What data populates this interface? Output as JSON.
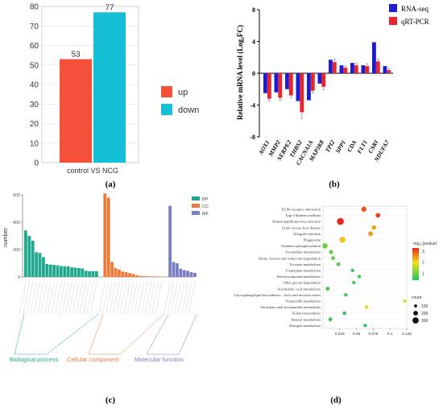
{
  "chart_data": [
    {
      "panel": "(a)",
      "type": "bar",
      "categories": [
        "control VS NCG"
      ],
      "series": [
        {
          "name": "up",
          "values": [
            53
          ],
          "color": "#f4503a"
        },
        {
          "name": "down",
          "values": [
            77
          ],
          "color": "#15bfd6"
        }
      ],
      "ylim": [
        0,
        80
      ],
      "yticks": [
        0,
        10,
        20,
        30,
        40,
        50,
        60,
        70,
        80
      ],
      "legend": "right"
    },
    {
      "panel": "(b)",
      "type": "bar",
      "ylabel": "Relative mRNA level (Log₂FC)",
      "ylim": [
        -8,
        8
      ],
      "yticks": [
        -8,
        -4,
        0,
        4,
        8
      ],
      "categories": [
        "AOX1",
        "MMP2",
        "SERPE2",
        "THBS2",
        "CACNA1A",
        "MAP3K8",
        "TPI2",
        "SPP1",
        "CDA",
        "FLT1",
        "CSRI",
        "NDUFA7"
      ],
      "series": [
        {
          "name": "RNA-seq",
          "color": "#1c1cd8",
          "values": [
            -2.5,
            -2.4,
            -2.0,
            -3.5,
            -3.4,
            -1.3,
            1.7,
            1.0,
            1.3,
            1.0,
            3.9,
            0.9
          ]
        },
        {
          "name": "qRT-PCR",
          "color": "#e8262b",
          "values": [
            -3.2,
            -3.1,
            -2.8,
            -4.9,
            -2.2,
            -1.7,
            1.4,
            0.7,
            1.0,
            0.9,
            1.5,
            0.4
          ]
        }
      ],
      "errors": [
        0.3,
        0.3,
        0.3,
        0.8,
        0.3,
        0.4,
        0.4,
        0.2,
        0.3,
        0.3,
        0.3,
        0.2
      ],
      "legend": "top-right"
    },
    {
      "panel": "(c)",
      "type": "bar",
      "ylabel": "number",
      "ylim": [
        0,
        600
      ],
      "yticks": [
        0,
        200,
        400,
        600
      ],
      "groups": [
        {
          "name": "Biological process",
          "legend": "BP",
          "color": "#20a98e",
          "values": [
            340,
            300,
            265,
            180,
            175,
            145,
            95,
            90,
            88,
            85,
            80,
            78,
            78,
            70,
            68,
            65,
            62,
            45,
            43,
            42,
            42
          ]
        },
        {
          "name": "Cellular component",
          "legend": "CC",
          "color": "#ee7a3a",
          "values": [
            610,
            580,
            110,
            65,
            55,
            40,
            35,
            28,
            22,
            12,
            8,
            6,
            5,
            4,
            4,
            3,
            2
          ]
        },
        {
          "name": "Molecular function",
          "legend": "MF",
          "color": "#7a7ec2",
          "values": [
            520,
            110,
            100,
            60,
            50,
            45,
            35,
            30
          ]
        }
      ],
      "legend": "top-right"
    },
    {
      "panel": "(d)",
      "type": "scatter",
      "categories": [
        "ECM–receptor interaction",
        "Type I diabetes mellitus",
        "Human papillomavirus infection",
        "Graft–versus–host disease",
        "Allograft rejection",
        "Phagosome",
        "Oxidative phosphorylation",
        "Pyrimidine metabolism",
        "Valine, leucine and isoleucine degradation",
        "Tyrosine metabolism",
        "Tryptophan metabolism",
        "Selenocompound metabolism",
        "Other glycan degradation",
        "Arachidonic acid metabolism",
        "Glycosphingolipid biosynthesis – lacto and neolacto series",
        "Vitamin B6 metabolism",
        "Nicotinate and nicotinamide metabolism",
        "Folate biosynthesis",
        "Retinol metabolism",
        "Nitrogen metabolism"
      ],
      "points": [
        {
          "x": 0.061,
          "p": 3.0,
          "count": 230
        },
        {
          "x": 0.082,
          "p": 3.1,
          "count": 200
        },
        {
          "x": 0.026,
          "p": 3.3,
          "count": 340
        },
        {
          "x": 0.076,
          "p": 2.4,
          "count": 190
        },
        {
          "x": 0.071,
          "p": 2.5,
          "count": 200
        },
        {
          "x": 0.029,
          "p": 2.2,
          "count": 290
        },
        {
          "x": 0.003,
          "p": 1.0,
          "count": 240
        },
        {
          "x": 0.012,
          "p": 0.9,
          "count": 160
        },
        {
          "x": 0.015,
          "p": 0.9,
          "count": 150
        },
        {
          "x": 0.023,
          "p": 0.8,
          "count": 150
        },
        {
          "x": 0.044,
          "p": 0.6,
          "count": 130
        },
        {
          "x": 0.054,
          "p": 0.6,
          "count": 120
        },
        {
          "x": 0.046,
          "p": 0.6,
          "count": 120
        },
        {
          "x": 0.007,
          "p": 0.7,
          "count": 160
        },
        {
          "x": 0.034,
          "p": 0.6,
          "count": 130
        },
        {
          "x": 0.122,
          "p": 1.8,
          "count": 110
        },
        {
          "x": 0.065,
          "p": 1.8,
          "count": 140
        },
        {
          "x": 0.032,
          "p": 0.5,
          "count": 140
        },
        {
          "x": 0.011,
          "p": 0.5,
          "count": 150
        },
        {
          "x": 0.063,
          "p": 0.4,
          "count": 120
        }
      ],
      "xlim": [
        0,
        0.125
      ],
      "xticks": [
        0.025,
        0.05,
        0.075,
        0.1,
        0.125
      ],
      "color_legend_title": "−log₁₀(pvalue)",
      "color_ticks": [
        1,
        2,
        3
      ],
      "size_legend_title": "count",
      "size_ticks": [
        100,
        200,
        300
      ],
      "legend": "right"
    }
  ],
  "captions": {
    "a": "(a)",
    "b": "(b)",
    "c": "(c)",
    "d": "(d)"
  },
  "colors": {
    "low": "#22c55e",
    "mid": "#f0e020",
    "high": "#e8261b"
  }
}
